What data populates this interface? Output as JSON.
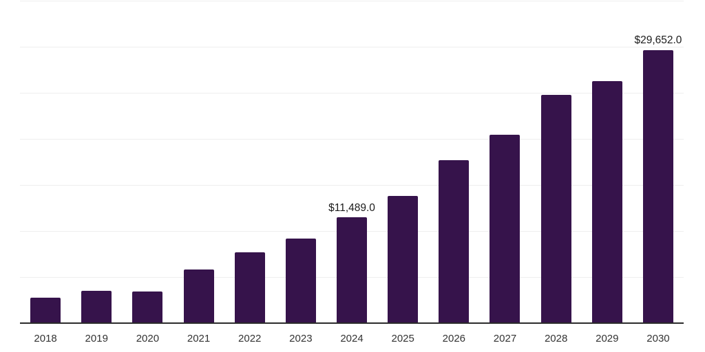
{
  "chart_data": {
    "type": "bar",
    "categories": [
      "2018",
      "2019",
      "2020",
      "2021",
      "2022",
      "2023",
      "2024",
      "2025",
      "2026",
      "2027",
      "2028",
      "2029",
      "2030"
    ],
    "values": [
      2780,
      3530,
      3410,
      5800,
      7710,
      9150,
      11489,
      13800,
      17680,
      20460,
      24750,
      26240,
      29652
    ],
    "data_labels": {
      "2024": "$11,489.0",
      "2030": "$29,652.0"
    },
    "xlabel": "",
    "ylabel": "",
    "ylim": [
      0,
      35000
    ],
    "grid_step": 5000,
    "grid": "horizontal gridlines only, no y-axis tick labels, legend off",
    "bar_color": "#36134B",
    "grid_color": "#eeeeee",
    "axis_line_color": "#2b2b2b",
    "data_label_color": "#1b1b1b",
    "tick_label_color": "#333333",
    "background_color": "#ffffff"
  }
}
